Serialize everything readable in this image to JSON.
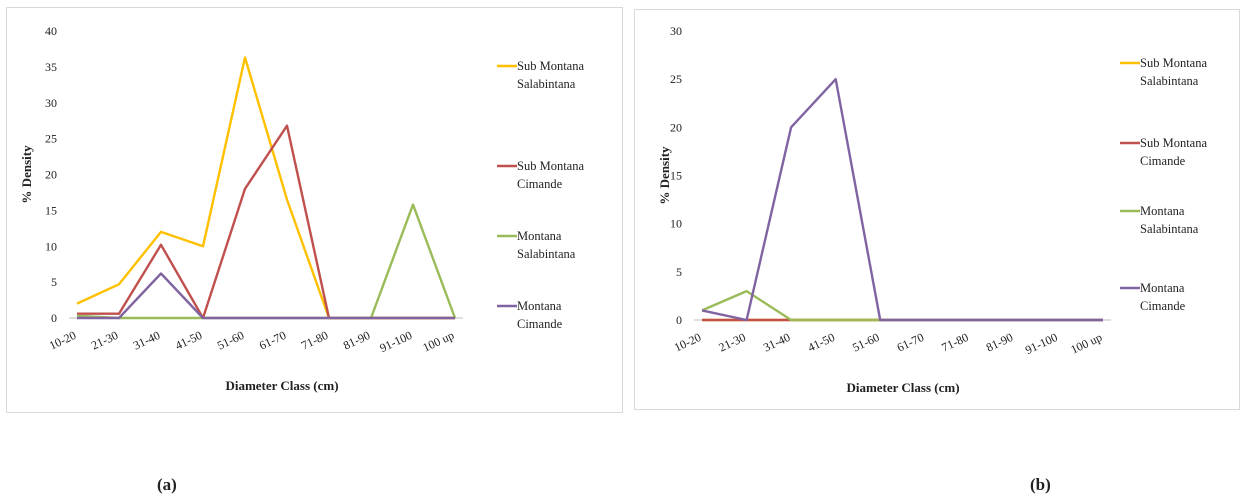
{
  "captions": {
    "a": "(a)",
    "b": "(b)"
  },
  "colors": {
    "Sub Montana Salabintana": "#ffc000",
    "Sub Montana Cimande": "#c0504d",
    "Montana Salabintana": "#9bbb59",
    "Montana Cimande": "#8064a2"
  },
  "chart_data": [
    {
      "type": "line",
      "xlabel": "Diameter Class (cm)",
      "ylabel": "% Density",
      "ylim": [
        0,
        40
      ],
      "yticks": [
        0,
        5,
        10,
        15,
        20,
        25,
        30,
        35,
        40
      ],
      "grid": false,
      "legend_position": "right",
      "categories": [
        "10-20",
        "21-30",
        "31-40",
        "41-50",
        "51-60",
        "61-70",
        "71-80",
        "81-90",
        "91-100",
        "100 up"
      ],
      "series": [
        {
          "name": "Sub Montana Salabintana",
          "values": [
            2,
            4.7,
            12,
            10,
            36.3,
            16.5,
            0,
            0,
            0,
            0
          ]
        },
        {
          "name": "Sub Montana Cimande",
          "values": [
            0.6,
            0.6,
            10.2,
            0,
            18,
            26.8,
            0,
            0,
            0,
            0
          ]
        },
        {
          "name": "Montana Salabintana",
          "values": [
            0.3,
            0,
            0,
            0,
            0,
            0,
            0,
            0,
            15.8,
            0
          ]
        },
        {
          "name": "Montana Cimande",
          "values": [
            0,
            0,
            6.2,
            0,
            0,
            0,
            0,
            0,
            0,
            0
          ]
        }
      ]
    },
    {
      "type": "line",
      "xlabel": "Diameter Class (cm)",
      "ylabel": "% Density",
      "ylim": [
        0,
        30
      ],
      "yticks": [
        0,
        5,
        10,
        15,
        20,
        25,
        30
      ],
      "grid": false,
      "legend_position": "right",
      "categories": [
        "10-20",
        "21-30",
        "31-40",
        "41-50",
        "51-60",
        "61-70",
        "71-80",
        "81-90",
        "91-100",
        "100 up"
      ],
      "series": [
        {
          "name": "Sub Montana Salabintana",
          "values": [
            0,
            0,
            0,
            0,
            0,
            0,
            0,
            0,
            0,
            0
          ]
        },
        {
          "name": "Sub Montana Cimande",
          "values": [
            0,
            0,
            0,
            0,
            0,
            0,
            0,
            0,
            0,
            0
          ]
        },
        {
          "name": "Montana Salabintana",
          "values": [
            1,
            3,
            0,
            0,
            0,
            0,
            0,
            0,
            0,
            0
          ]
        },
        {
          "name": "Montana Cimande",
          "values": [
            1,
            0,
            20,
            25,
            0,
            0,
            0,
            0,
            0,
            0
          ]
        }
      ]
    }
  ]
}
